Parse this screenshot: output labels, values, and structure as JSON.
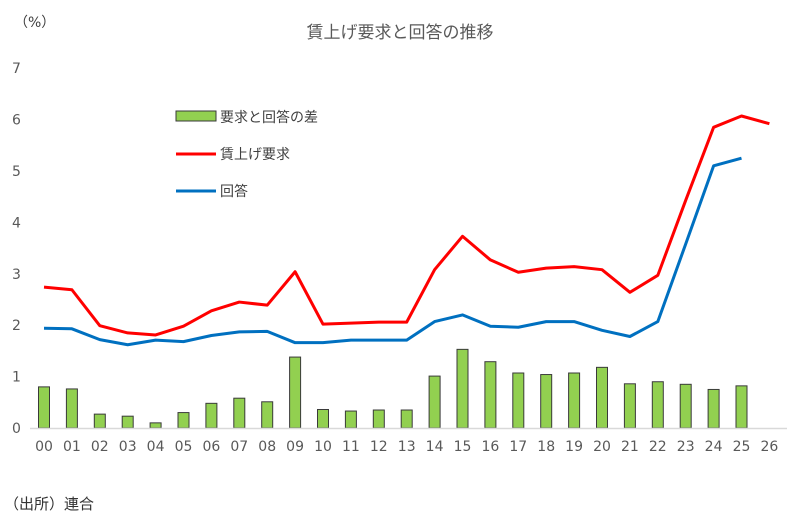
{
  "title": "賃上げ要求と回答の推移",
  "unit_label": "（%）",
  "source": "（出所）連合",
  "colors": {
    "bar": "#92d050",
    "bar_border": "#3a3a3a",
    "request": "#ff0000",
    "answer": "#0070c0",
    "axis": "#d9d9d9"
  },
  "legend": [
    {
      "label": "要求と回答の差",
      "type": "bar"
    },
    {
      "label": "賃上げ要求",
      "type": "line",
      "color": "#ff0000"
    },
    {
      "label": "回答",
      "type": "line",
      "color": "#0070c0"
    }
  ],
  "chart_data": {
    "type": "bar+line",
    "title": "賃上げ要求と回答の推移",
    "xlabel": "",
    "ylabel": "（%）",
    "ylim": [
      0,
      7
    ],
    "yticks": [
      0,
      1,
      2,
      3,
      4,
      5,
      6,
      7
    ],
    "grid": false,
    "legend_position": "upper-left-inside",
    "categories": [
      "00",
      "01",
      "02",
      "03",
      "04",
      "05",
      "06",
      "07",
      "08",
      "09",
      "10",
      "11",
      "12",
      "13",
      "14",
      "15",
      "16",
      "17",
      "18",
      "19",
      "20",
      "21",
      "22",
      "23",
      "24",
      "25",
      "26"
    ],
    "series": [
      {
        "name": "要求と回答の差",
        "type": "bar",
        "values": [
          0.8,
          0.76,
          0.27,
          0.23,
          0.1,
          0.3,
          0.48,
          0.58,
          0.51,
          1.38,
          0.36,
          0.33,
          0.35,
          0.35,
          1.01,
          1.53,
          1.29,
          1.07,
          1.04,
          1.07,
          1.18,
          0.86,
          0.9,
          0.85,
          0.75,
          0.82,
          null
        ]
      },
      {
        "name": "賃上げ要求",
        "type": "line",
        "values": [
          2.74,
          2.69,
          1.99,
          1.85,
          1.81,
          1.98,
          2.28,
          2.45,
          2.39,
          3.04,
          2.02,
          2.04,
          2.06,
          2.06,
          3.08,
          3.73,
          3.27,
          3.03,
          3.11,
          3.14,
          3.08,
          2.64,
          2.97,
          4.43,
          5.85,
          6.07,
          5.92
        ]
      },
      {
        "name": "回答",
        "type": "line",
        "values": [
          1.94,
          1.93,
          1.72,
          1.62,
          1.71,
          1.68,
          1.8,
          1.87,
          1.88,
          1.66,
          1.66,
          1.71,
          1.71,
          1.71,
          2.07,
          2.2,
          1.98,
          1.96,
          2.07,
          2.07,
          1.9,
          1.78,
          2.07,
          3.58,
          5.1,
          5.25,
          null
        ]
      }
    ]
  }
}
